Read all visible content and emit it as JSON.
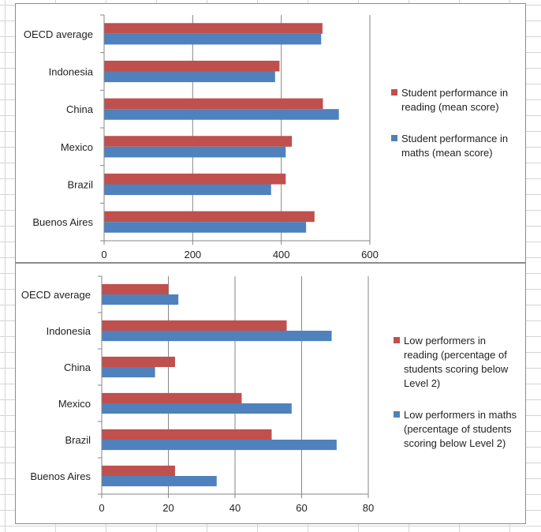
{
  "chart_data": [
    {
      "type": "bar",
      "orientation": "horizontal",
      "categories": [
        "OECD average",
        "Indonesia",
        "China",
        "Mexico",
        "Brazil",
        "Buenos Aires"
      ],
      "series": [
        {
          "name": "Student performance in reading (mean score)",
          "color": "#c0504d",
          "values": [
            493,
            396,
            494,
            424,
            410,
            475
          ]
        },
        {
          "name": "Student performance in maths (mean score)",
          "color": "#4f81bd",
          "values": [
            490,
            386,
            530,
            410,
            377,
            456
          ]
        }
      ],
      "xlim": [
        0,
        600
      ],
      "xticks": [
        "0",
        "200",
        "400",
        "600"
      ],
      "gridlines": [
        200,
        400,
        600
      ],
      "legend_position": "right"
    },
    {
      "type": "bar",
      "orientation": "horizontal",
      "categories": [
        "OECD average",
        "Indonesia",
        "China",
        "Mexico",
        "Brazil",
        "Buenos Aires"
      ],
      "series": [
        {
          "name": "Low performers in reading (percentage of students scoring below Level 2)",
          "color": "#c0504d",
          "values": [
            20,
            55.5,
            22,
            42,
            51,
            22
          ]
        },
        {
          "name": "Low performers in maths (percentage of students scoring below Level 2)",
          "color": "#4f81bd",
          "values": [
            23,
            69,
            16,
            57,
            70.5,
            34.5
          ]
        }
      ],
      "xlim": [
        0,
        80
      ],
      "xticks": [
        "0",
        "20",
        "40",
        "60",
        "80"
      ],
      "gridlines": [
        20,
        40,
        60,
        80
      ],
      "legend_position": "right"
    }
  ]
}
